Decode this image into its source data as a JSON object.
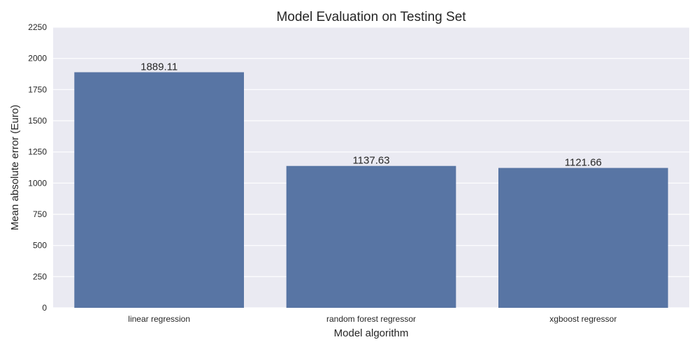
{
  "chart_data": {
    "type": "bar",
    "title": "Model Evaluation on Testing Set",
    "xlabel": "Model algorithm",
    "ylabel": "Mean absolute error (Euro)",
    "categories": [
      "linear regression",
      "random forest regressor",
      "xgboost regressor"
    ],
    "values": [
      1889.11,
      1137.63,
      1121.66
    ],
    "value_labels": [
      "1889.11",
      "1137.63",
      "1121.66"
    ],
    "yticks": [
      0,
      250,
      500,
      750,
      1000,
      1250,
      1500,
      1750,
      2000,
      2250
    ],
    "ylim": [
      0,
      2250
    ],
    "grid": true,
    "legend": "none",
    "bar_color": "#5875a4",
    "background_color": "#eaeaf2"
  }
}
